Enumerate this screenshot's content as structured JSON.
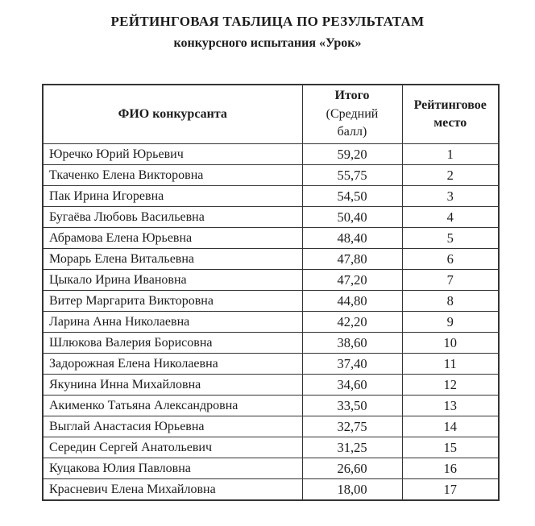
{
  "title": {
    "line1": "РЕЙТИНГОВАЯ ТАБЛИЦА ПО РЕЗУЛЬТАТАМ",
    "line2": "конкурсного испытания «Урок»"
  },
  "table": {
    "headers": {
      "name": "ФИО конкурсанта",
      "score_main": "Итого",
      "score_sub": "(Средний балл)",
      "rank": "Рейтинговое место"
    },
    "rows": [
      {
        "name": "Юречко Юрий Юрьевич",
        "score": "59,20",
        "rank": "1"
      },
      {
        "name": "Ткаченко Елена Викторовна",
        "score": "55,75",
        "rank": "2"
      },
      {
        "name": "Пак Ирина Игоревна",
        "score": "54,50",
        "rank": "3"
      },
      {
        "name": "Бугаёва Любовь Васильевна",
        "score": "50,40",
        "rank": "4"
      },
      {
        "name": "Абрамова Елена Юрьевна",
        "score": "48,40",
        "rank": "5"
      },
      {
        "name": "Морарь Елена Витальевна",
        "score": "47,80",
        "rank": "6"
      },
      {
        "name": "Цыкало Ирина Ивановна",
        "score": "47,20",
        "rank": "7"
      },
      {
        "name": "Витер Маргарита Викторовна",
        "score": "44,80",
        "rank": "8"
      },
      {
        "name": "Ларина Анна Николаевна",
        "score": "42,20",
        "rank": "9"
      },
      {
        "name": "Шлюкова Валерия Борисовна",
        "score": "38,60",
        "rank": "10"
      },
      {
        "name": "Задорожная Елена Николаевна",
        "score": "37,40",
        "rank": "11"
      },
      {
        "name": "Якунина Инна Михайловна",
        "score": "34,60",
        "rank": "12"
      },
      {
        "name": "Акименко Татьяна Александровна",
        "score": "33,50",
        "rank": "13"
      },
      {
        "name": "Выглай Анастасия Юрьевна",
        "score": "32,75",
        "rank": "14"
      },
      {
        "name": "Середин Сергей Анатольевич",
        "score": "31,25",
        "rank": "15"
      },
      {
        "name": "Куцакова Юлия Павловна",
        "score": "26,60",
        "rank": "16"
      },
      {
        "name": "Красневич Елена Михайловна",
        "score": "18,00",
        "rank": "17"
      }
    ]
  },
  "colors": {
    "text": "#1c1c1c",
    "border": "#343434",
    "background": "#ffffff"
  }
}
